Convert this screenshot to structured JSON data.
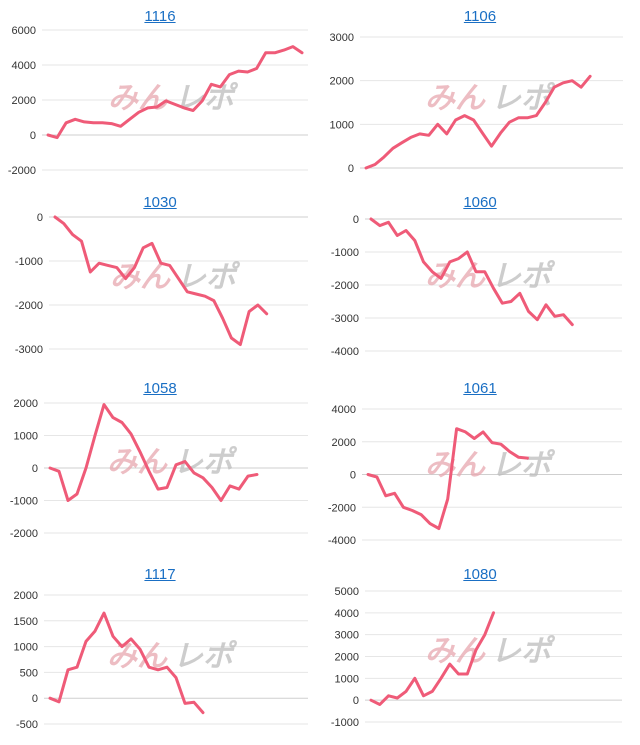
{
  "line_color": "#ef5b78",
  "title_color": "#1a6fc4",
  "watermark": {
    "part_a": "みん",
    "part_b": "レポ",
    "color_a": "#e8a8b0",
    "color_b": "#bdbdbd"
  },
  "chart_data": [
    {
      "type": "line",
      "title": "1116",
      "ylim": [
        -2000,
        6000
      ],
      "yticks": [
        -2000,
        0,
        2000,
        4000,
        6000
      ],
      "values": [
        0,
        -150,
        700,
        900,
        750,
        700,
        700,
        650,
        500,
        900,
        1300,
        1550,
        1600,
        1950,
        1750,
        1550,
        1400,
        1950,
        2900,
        2750,
        3450,
        3650,
        3600,
        3800,
        4700,
        4700,
        4850,
        5050,
        4700
      ]
    },
    {
      "type": "line",
      "title": "1106",
      "ylim": [
        0,
        3000
      ],
      "yticks": [
        0,
        1000,
        2000,
        3000
      ],
      "values": [
        0,
        80,
        250,
        450,
        580,
        700,
        780,
        750,
        1000,
        780,
        1100,
        1200,
        1100,
        800,
        500,
        800,
        1050,
        1150,
        1150,
        1200,
        1500,
        1850,
        1950,
        2000,
        1850,
        2100
      ]
    },
    {
      "type": "line",
      "title": "1030",
      "ylim": [
        -3000,
        0
      ],
      "yticks": [
        -3000,
        -2000,
        -1000,
        0
      ],
      "values": [
        0,
        -150,
        -400,
        -550,
        -1250,
        -1050,
        -1100,
        -1150,
        -1400,
        -1150,
        -700,
        -600,
        -1050,
        -1100,
        -1400,
        -1700,
        -1750,
        -1800,
        -1900,
        -2300,
        -2750,
        -2900,
        -2150,
        -2000,
        -2200
      ]
    },
    {
      "type": "line",
      "title": "1060",
      "ylim": [
        -4000,
        0
      ],
      "yticks": [
        -4000,
        -3000,
        -2000,
        -1000,
        0
      ],
      "values": [
        0,
        -200,
        -100,
        -500,
        -350,
        -650,
        -1300,
        -1600,
        -1800,
        -1300,
        -1200,
        -1000,
        -1600,
        -1600,
        -2100,
        -2550,
        -2500,
        -2250,
        -2800,
        -3050,
        -2600,
        -2950,
        -2900,
        -3200
      ]
    },
    {
      "type": "line",
      "title": "1058",
      "ylim": [
        -2000,
        2000
      ],
      "yticks": [
        -2000,
        -1000,
        0,
        1000,
        2000
      ],
      "values": [
        0,
        -100,
        -1000,
        -800,
        0,
        1000,
        1950,
        1550,
        1400,
        1050,
        500,
        -100,
        -650,
        -600,
        100,
        200,
        -150,
        -300,
        -600,
        -1000,
        -550,
        -650,
        -250,
        -200
      ]
    },
    {
      "type": "line",
      "title": "1061",
      "ylim": [
        -4000,
        4000
      ],
      "yticks": [
        -4000,
        -2000,
        0,
        2000,
        4000
      ],
      "values": [
        0,
        -150,
        -1300,
        -1150,
        -2000,
        -2200,
        -2450,
        -3000,
        -3300,
        -1500,
        2800,
        2600,
        2200,
        2600,
        1950,
        1850,
        1400,
        1050,
        1000
      ]
    },
    {
      "type": "line",
      "title": "1117",
      "ylim": [
        -500,
        2000
      ],
      "yticks": [
        -500,
        0,
        500,
        1000,
        1500,
        2000
      ],
      "values": [
        0,
        -70,
        550,
        600,
        1100,
        1300,
        1650,
        1200,
        1000,
        1150,
        950,
        600,
        550,
        600,
        400,
        -100,
        -80,
        -280
      ]
    },
    {
      "type": "line",
      "title": "1080",
      "ylim": [
        -1000,
        5000
      ],
      "yticks": [
        -1000,
        0,
        1000,
        2000,
        3000,
        4000,
        5000
      ],
      "values": [
        0,
        -200,
        200,
        100,
        400,
        1000,
        200,
        400,
        1000,
        1650,
        1200,
        1200,
        2300,
        3000,
        4000
      ]
    }
  ]
}
